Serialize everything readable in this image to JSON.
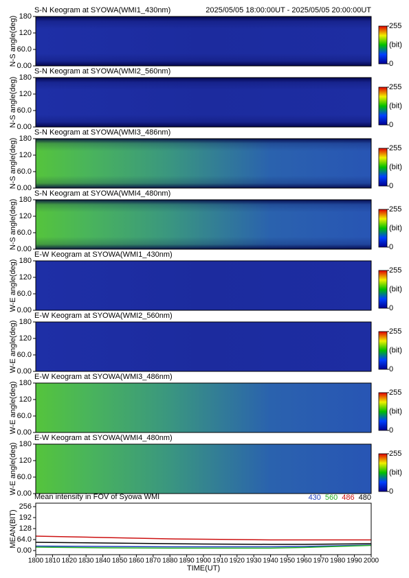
{
  "chart_data": [
    {
      "type": "keogram",
      "title": "S-N Keogram at SYOWA(WMI1_430nm)",
      "subtitle": "2025/05/05 18:00:00UT - 2025/05/05 20:00:00UT",
      "ylabel": "N-S angle(deg)",
      "ylim": [
        0,
        180
      ],
      "yticks": [
        180,
        120,
        {
          "value": 60,
          "label": "60.0"
        },
        {
          "value": 0,
          "label": "0.00"
        }
      ],
      "colorbar_ticks": [
        0,
        255
      ],
      "colorbar_label": "(bit)"
    },
    {
      "type": "keogram",
      "title": "S-N Keogram at SYOWA(WMI2_560nm)",
      "ylabel": "N-S angle(deg)",
      "ylim": [
        0,
        180
      ],
      "yticks": [
        180,
        120,
        {
          "value": 60,
          "label": "60.0"
        },
        {
          "value": 0,
          "label": "0.00"
        }
      ],
      "colorbar_ticks": [
        0,
        255
      ],
      "colorbar_label": "(bit)"
    },
    {
      "type": "keogram",
      "title": "S-N Keogram at SYOWA(WMI3_486nm)",
      "ylabel": "N-S angle(deg)",
      "ylim": [
        0,
        180
      ],
      "yticks": [
        180,
        120,
        {
          "value": 60,
          "label": "60.0"
        },
        {
          "value": 0,
          "label": "0.00"
        }
      ],
      "colorbar_ticks": [
        0,
        255
      ],
      "colorbar_label": "(bit)"
    },
    {
      "type": "keogram",
      "title": "S-N Keogram at SYOWA(WMI4_480nm)",
      "ylabel": "N-S angle(deg)",
      "ylim": [
        0,
        180
      ],
      "yticks": [
        180,
        120,
        {
          "value": 60,
          "label": "60.0"
        },
        {
          "value": 0,
          "label": "0.00"
        }
      ],
      "colorbar_ticks": [
        0,
        255
      ],
      "colorbar_label": "(bit)"
    },
    {
      "type": "keogram",
      "title": "E-W Keogram at SYOWA(WMI1_430nm)",
      "ylabel": "W-E angle(deg)",
      "ylim": [
        0,
        180
      ],
      "yticks": [
        180,
        120,
        {
          "value": 60,
          "label": "60.0"
        },
        {
          "value": 0,
          "label": "0.00"
        }
      ],
      "colorbar_ticks": [
        0,
        255
      ],
      "colorbar_label": "(bit)"
    },
    {
      "type": "keogram",
      "title": "E-W Keogram at SYOWA(WMI2_560nm)",
      "ylabel": "W-E angle(deg)",
      "ylim": [
        0,
        180
      ],
      "yticks": [
        180,
        120,
        {
          "value": 60,
          "label": "60.0"
        },
        {
          "value": 0,
          "label": "0.00"
        }
      ],
      "colorbar_ticks": [
        0,
        255
      ],
      "colorbar_label": "(bit)"
    },
    {
      "type": "keogram",
      "title": "E-W Keogram at SYOWA(WMI3_486nm)",
      "ylabel": "W-E angle(deg)",
      "ylim": [
        0,
        180
      ],
      "yticks": [
        180,
        120,
        {
          "value": 60,
          "label": "60.0"
        },
        {
          "value": 0,
          "label": "0.00"
        }
      ],
      "colorbar_ticks": [
        0,
        255
      ],
      "colorbar_label": "(bit)"
    },
    {
      "type": "keogram",
      "title": "E-W Keogram at SYOWA(WMI4_480nm)",
      "ylabel": "W-E angle(deg)",
      "ylim": [
        0,
        180
      ],
      "yticks": [
        180,
        120,
        {
          "value": 60,
          "label": "60.0"
        },
        {
          "value": 0,
          "label": "0.00"
        }
      ],
      "colorbar_ticks": [
        0,
        255
      ],
      "colorbar_label": "(bit)"
    },
    {
      "type": "line",
      "title": "Mean intensity in FOV of Syowa WMI",
      "xlabel": "TIME(UT)",
      "ylabel": "MEAN(BIT)",
      "x": [
        1800,
        1820,
        1840,
        1860,
        1880,
        1900,
        1920,
        1940,
        1960,
        1980,
        2000
      ],
      "xlim": [
        1800,
        2000
      ],
      "xticks": [
        1800,
        1810,
        1820,
        1830,
        1840,
        1850,
        1860,
        1870,
        1880,
        1890,
        1900,
        1910,
        1920,
        1930,
        1940,
        1950,
        1960,
        1970,
        1980,
        1990,
        2000
      ],
      "ylim": [
        -24,
        276
      ],
      "yticks": [
        {
          "value": 0,
          "label": "0.00"
        },
        {
          "value": 64,
          "label": "64.0"
        },
        128,
        192,
        256
      ],
      "series": [
        {
          "name": "430",
          "color": "#1f3fbf",
          "values": [
            26,
            25,
            24,
            23,
            22,
            22,
            22,
            22,
            24,
            28,
            32
          ]
        },
        {
          "name": "560",
          "color": "#22b022",
          "values": [
            20,
            18,
            16,
            15,
            14,
            14,
            14,
            14,
            18,
            24,
            30
          ]
        },
        {
          "name": "486",
          "color": "#cc1010",
          "values": [
            84,
            80,
            76,
            72,
            68,
            66,
            64,
            62,
            62,
            62,
            62
          ]
        },
        {
          "name": "480",
          "color": "#000000",
          "values": [
            48,
            46,
            44,
            42,
            40,
            38,
            37,
            36,
            36,
            38,
            40
          ]
        }
      ]
    }
  ]
}
